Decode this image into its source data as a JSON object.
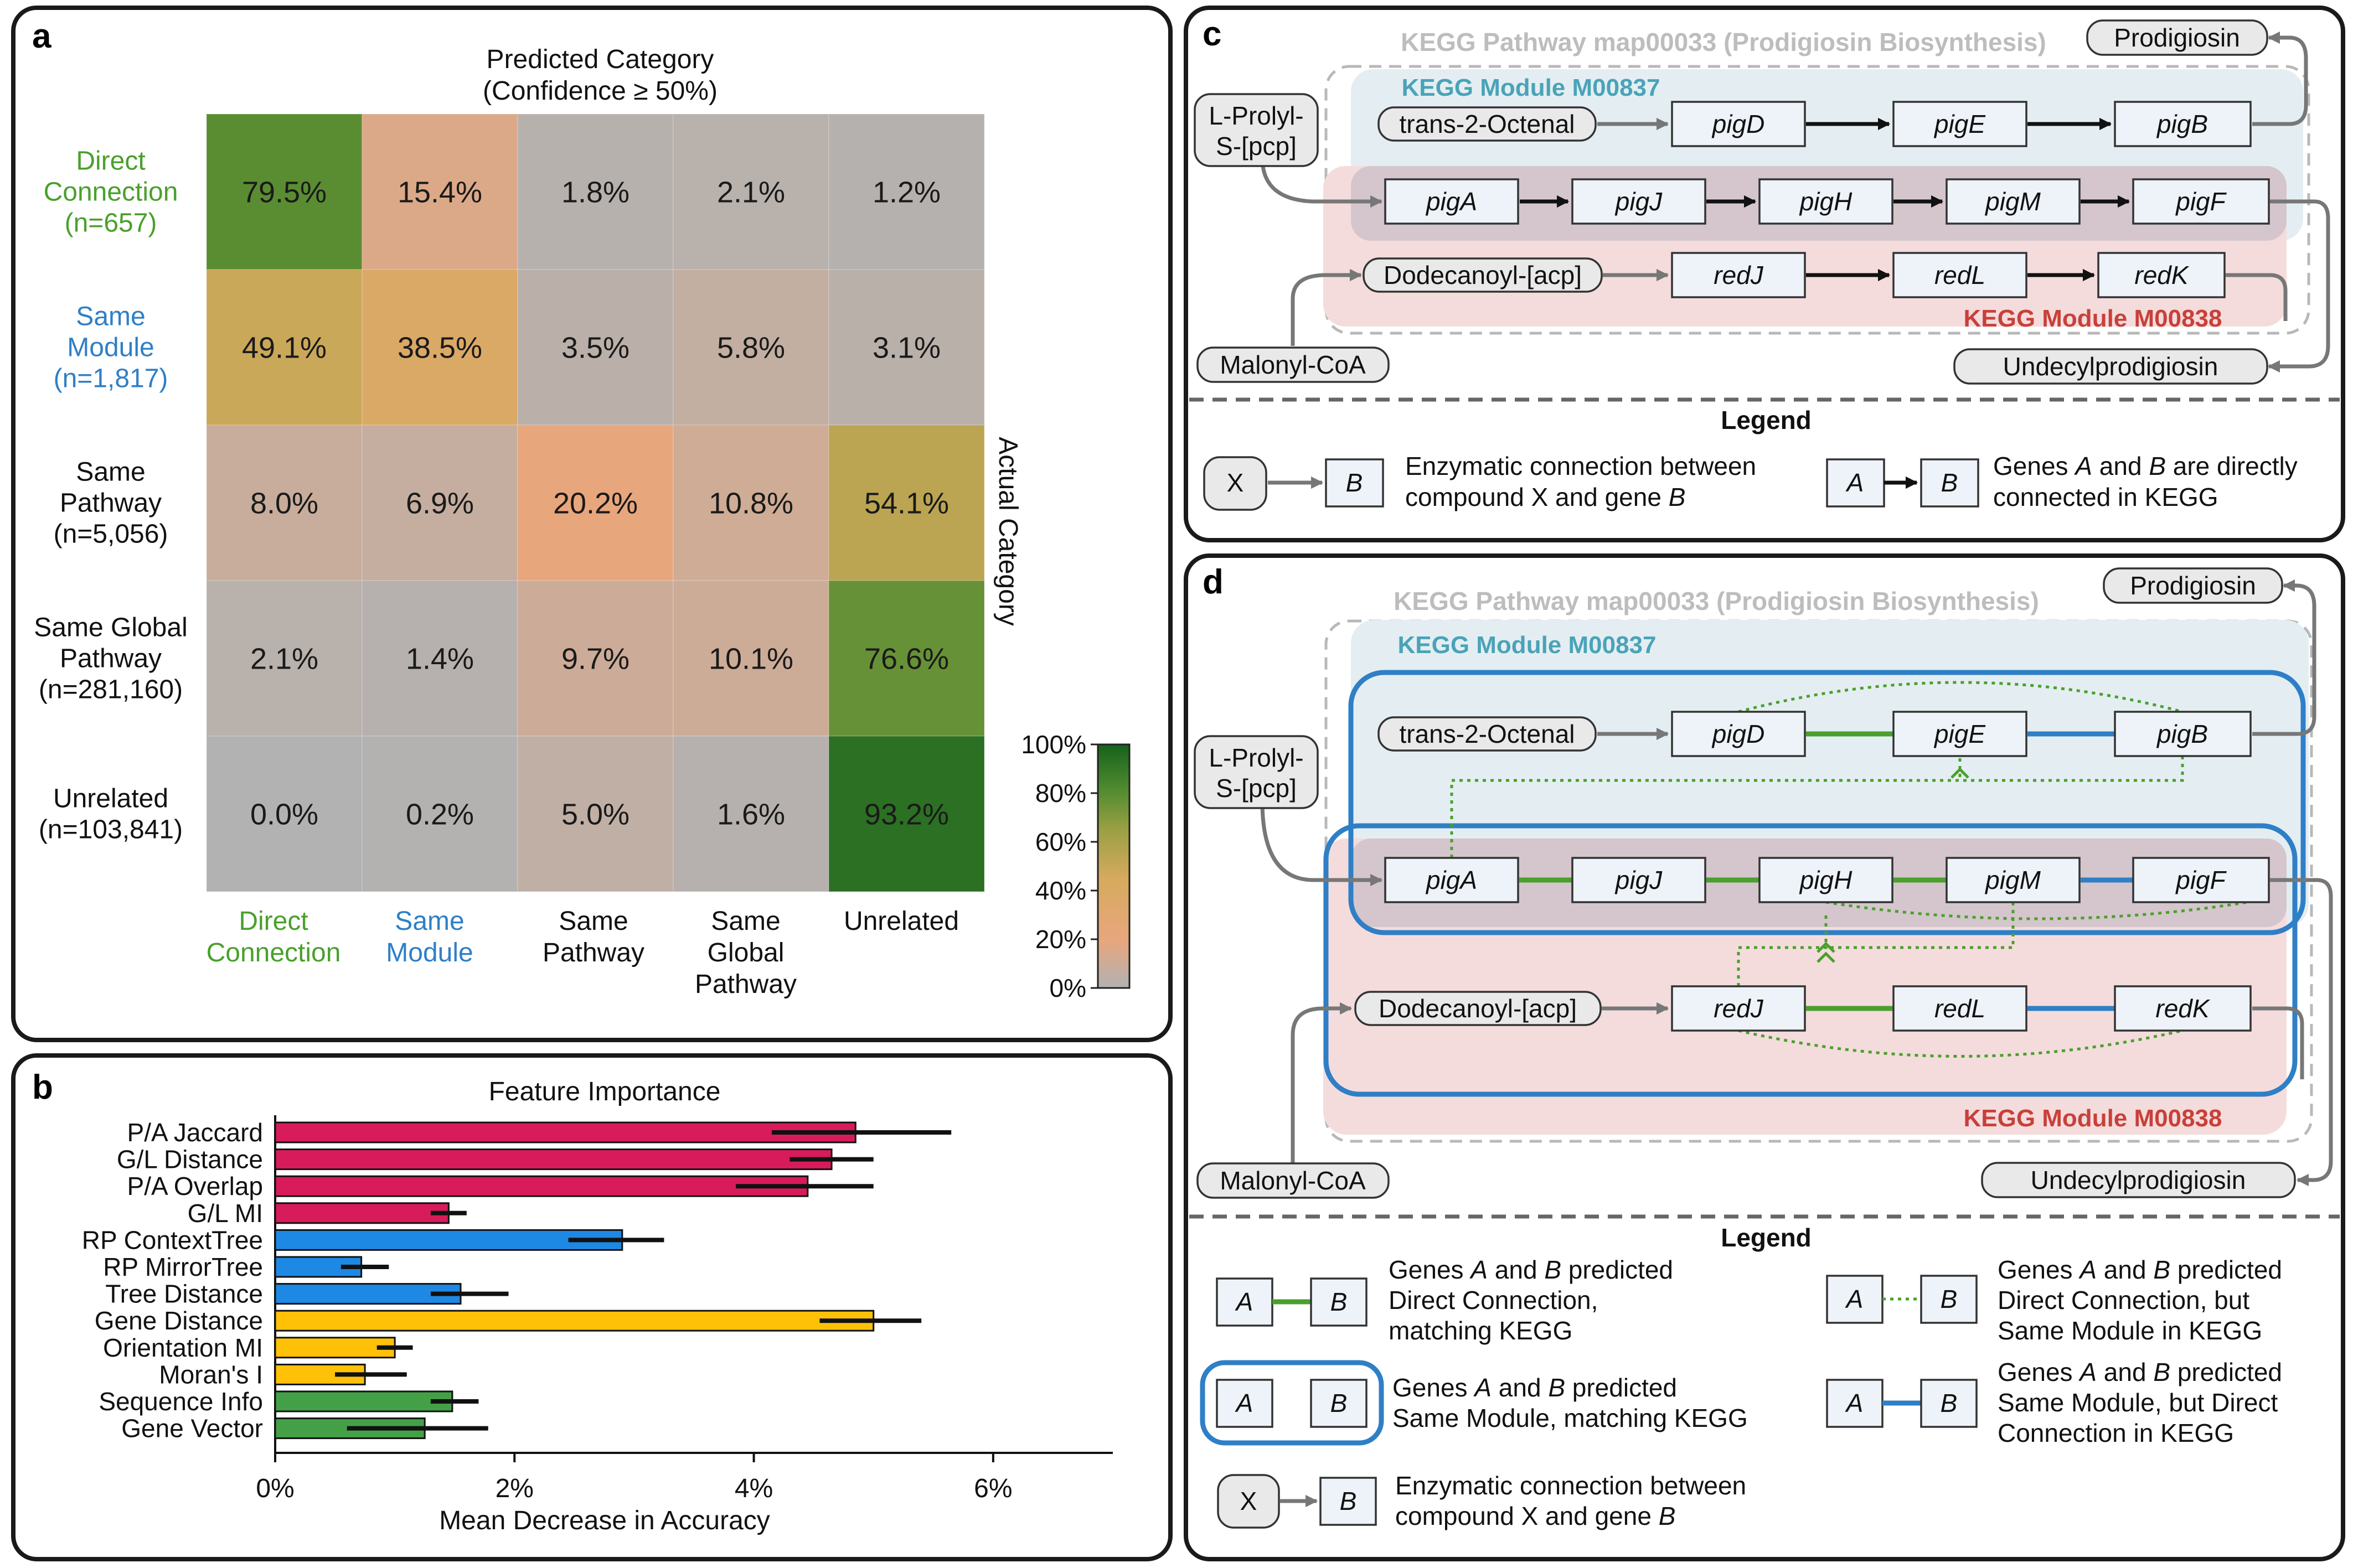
{
  "panels": {
    "a": "a",
    "b": "b",
    "c": "c",
    "d": "d"
  },
  "heatmap": {
    "top_title_1": "Predicted Category",
    "top_title_2": "(Confidence ≥ 50%)",
    "side_title": "Actual Category",
    "rows": [
      {
        "l1": "Direct",
        "l2": "Connection",
        "l3": "(n=657)",
        "color": "#4aa02c"
      },
      {
        "l1": "Same",
        "l2": "Module",
        "l3": "(n=1,817)",
        "color": "#2f7fc6"
      },
      {
        "l1": "Same",
        "l2": "Pathway",
        "l3": "(n=5,056)",
        "color": "#111111"
      },
      {
        "l1": "Same Global",
        "l2": "Pathway",
        "l3": "(n=281,160)",
        "color": "#111111"
      },
      {
        "l1": "Unrelated",
        "l2": "(n=103,841)",
        "l3": "",
        "color": "#111111"
      }
    ],
    "cols": [
      {
        "l1": "Direct",
        "l2": "Connection",
        "l3": "",
        "color": "#4aa02c"
      },
      {
        "l1": "Same",
        "l2": "Module",
        "l3": "",
        "color": "#2f7fc6"
      },
      {
        "l1": "Same",
        "l2": "Pathway",
        "l3": "",
        "color": "#111111"
      },
      {
        "l1": "Same",
        "l2": "Global",
        "l3": "Pathway",
        "color": "#111111"
      },
      {
        "l1": "Unrelated",
        "l2": "",
        "l3": "",
        "color": "#111111"
      }
    ],
    "colorbar_ticks": [
      "100%",
      "80%",
      "60%",
      "40%",
      "20%",
      "0%"
    ]
  },
  "chart_data": [
    {
      "type": "heatmap",
      "title": "Predicted Category (Confidence ≥ 50%)",
      "ylabel": "Actual Category",
      "x_categories": [
        "Direct Connection",
        "Same Module",
        "Same Pathway",
        "Same Global Pathway",
        "Unrelated"
      ],
      "y_categories": [
        "Direct Connection (n=657)",
        "Same Module (n=1,817)",
        "Same Pathway (n=5,056)",
        "Same Global Pathway (n=281,160)",
        "Unrelated (n=103,841)"
      ],
      "values": [
        [
          79.5,
          15.4,
          1.8,
          2.1,
          1.2
        ],
        [
          49.1,
          38.5,
          3.5,
          5.8,
          3.1
        ],
        [
          8.0,
          6.9,
          20.2,
          10.8,
          54.1
        ],
        [
          2.1,
          1.4,
          9.7,
          10.1,
          76.6
        ],
        [
          0.0,
          0.2,
          5.0,
          1.6,
          93.2
        ]
      ],
      "labels": [
        [
          "79.5%",
          "15.4%",
          "1.8%",
          "2.1%",
          "1.2%"
        ],
        [
          "49.1%",
          "38.5%",
          "3.5%",
          "5.8%",
          "3.1%"
        ],
        [
          "8.0%",
          "6.9%",
          "20.2%",
          "10.8%",
          "54.1%"
        ],
        [
          "2.1%",
          "1.4%",
          "9.7%",
          "10.1%",
          "76.6%"
        ],
        [
          "0.0%",
          "0.2%",
          "5.0%",
          "1.6%",
          "93.2%"
        ]
      ],
      "colorbar_range": [
        0,
        100
      ],
      "colorbar_colors": [
        "#b2b2b2",
        "#e8a67c",
        "#d6aa5e",
        "#9aa044",
        "#4f8a2f",
        "#16611c"
      ]
    },
    {
      "type": "bar",
      "orientation": "horizontal",
      "title": "Feature Importance",
      "xlabel": "Mean Decrease in Accuracy",
      "xlim": [
        0,
        7
      ],
      "x_ticks": [
        0,
        2,
        4,
        6
      ],
      "x_tick_labels": [
        "0%",
        "2%",
        "4%",
        "6%"
      ],
      "categories": [
        "P/A Jaccard",
        "G/L Distance",
        "P/A Overlap",
        "G/L MI",
        "RP ContextTree",
        "RP MirrorTree",
        "Tree Distance",
        "Gene Distance",
        "Orientation MI",
        "Moran's I",
        "Sequence Info",
        "Gene Vector"
      ],
      "values": [
        4.85,
        4.65,
        4.45,
        1.45,
        2.9,
        0.72,
        1.55,
        5.0,
        1.0,
        0.75,
        1.48,
        1.25
      ],
      "error_low": [
        4.15,
        4.3,
        3.85,
        1.3,
        2.45,
        0.55,
        1.3,
        4.55,
        0.85,
        0.5,
        1.3,
        0.6
      ],
      "error_high": [
        5.65,
        5.0,
        5.0,
        1.6,
        3.25,
        0.95,
        1.95,
        5.4,
        1.15,
        1.1,
        1.7,
        1.78
      ],
      "bar_colors": [
        "#d81b5a",
        "#d81b5a",
        "#d81b5a",
        "#d81b5a",
        "#1e88e5",
        "#1e88e5",
        "#1e88e5",
        "#ffc107",
        "#ffc107",
        "#ffc107",
        "#43a047",
        "#43a047"
      ]
    }
  ],
  "panel_c": {
    "pathway": "KEGG Pathway map00033 (Prodigiosin Biosynthesis)",
    "module1": "KEGG Module M00837",
    "module2": "KEGG Module M00838",
    "compounds": {
      "prolyl_1": "L-Prolyl-",
      "prolyl_2": "S-[pcp]",
      "octenal": "trans-2-Octenal",
      "dodecanoyl": "Dodecanoyl-[acp]",
      "malonyl": "Malonyl-CoA",
      "prodigiosin": "Prodigiosin",
      "undecyl": "Undecylprodigiosin"
    },
    "genes": {
      "pigD": "pigD",
      "pigE": "pigE",
      "pigB": "pigB",
      "pigA": "pigA",
      "pigJ": "pigJ",
      "pigH": "pigH",
      "pigM": "pigM",
      "pigF": "pigF",
      "redJ": "redJ",
      "redL": "redL",
      "redK": "redK"
    },
    "legend": {
      "title": "Legend",
      "x": "X",
      "b": "B",
      "a": "A",
      "enz_1": "Enzymatic connection between",
      "enz_2a": "compound X and gene ",
      "enz_2b": "B",
      "dir_1a": "Genes ",
      "dir_1b": "A",
      "dir_1c": " and ",
      "dir_1d": "B",
      "dir_1e": " are directly",
      "dir_2": "connected in KEGG"
    }
  },
  "panel_d": {
    "pathway": "KEGG Pathway map00033 (Prodigiosin Biosynthesis)",
    "module1": "KEGG Module M00837",
    "module2": "KEGG Module M00838",
    "compounds": {
      "prolyl_1": "L-Prolyl-",
      "prolyl_2": "S-[pcp]",
      "octenal": "trans-2-Octenal",
      "dodecanoyl": "Dodecanoyl-[acp]",
      "malonyl": "Malonyl-CoA",
      "prodigiosin": "Prodigiosin",
      "undecyl": "Undecylprodigiosin"
    },
    "genes": {
      "pigD": "pigD",
      "pigE": "pigE",
      "pigB": "pigB",
      "pigA": "pigA",
      "pigJ": "pigJ",
      "pigH": "pigH",
      "pigM": "pigM",
      "pigF": "pigF",
      "redJ": "redJ",
      "redL": "redL",
      "redK": "redK"
    },
    "legend": {
      "title": "Legend",
      "a": "A",
      "b": "B",
      "x": "X",
      "g_pre": "Genes ",
      "g_and": " and ",
      "g_pred": " predicted",
      "l1_2": "Direct Connection,",
      "l1_3": "matching KEGG",
      "l2_2": "Direct Connection, but",
      "l2_3": "Same Module in KEGG",
      "l3_2": "Same Module, matching KEGG",
      "l4_2": "Same Module, but Direct",
      "l4_3": "Connection in KEGG",
      "enz_1": "Enzymatic connection between",
      "enz_2a": "compound X and gene ",
      "enz_2b": "B"
    }
  }
}
